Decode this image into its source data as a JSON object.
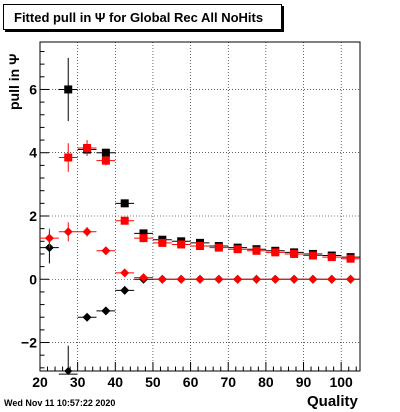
{
  "title": "Fitted pull in  Ψ  for Global Rec All NoHits",
  "ylabel": "pull in  Ψ",
  "xlabel": "Quality",
  "datestamp": "Wed Nov 11 10:57:22 2020",
  "chart_data": {
    "type": "scatter",
    "title": "Fitted pull in  Ψ  for Global Rec All NoHits",
    "xlabel": "Quality",
    "ylabel": "pull in  Ψ",
    "xlim": [
      20,
      105
    ],
    "ylim": [
      -2.9,
      7.5
    ],
    "grid": true,
    "x_ticks": [
      20,
      30,
      40,
      50,
      60,
      70,
      80,
      90,
      100
    ],
    "y_ticks": [
      -2,
      0,
      2,
      4,
      6
    ],
    "x_tick_labels": [
      "20",
      "30",
      "40",
      "50",
      "60",
      "70",
      "80",
      "90",
      "100"
    ],
    "y_tick_labels": [
      "−2",
      "0",
      "2",
      "4",
      "6"
    ],
    "series": [
      {
        "marker": "square",
        "color": "#000000",
        "x": [
          27.5,
          32.5,
          37.5,
          42.5,
          47.5,
          52.5,
          57.5,
          62.5,
          67.5,
          72.5,
          77.5,
          82.5,
          87.5,
          92.5,
          97.5,
          102.5
        ],
        "y": [
          6.0,
          4.1,
          4.0,
          2.4,
          1.45,
          1.25,
          1.2,
          1.15,
          1.05,
          1.0,
          0.95,
          0.9,
          0.85,
          0.8,
          0.75,
          0.7
        ],
        "err": [
          1.0,
          0.15,
          0.12,
          0.1,
          0.08,
          0.06,
          0.06,
          0.05,
          0.05,
          0.05,
          0.05,
          0.05,
          0.05,
          0.05,
          0.05,
          0.05
        ]
      },
      {
        "marker": "square",
        "color": "#ff0000",
        "x": [
          27.5,
          32.5,
          37.5,
          42.5,
          47.5,
          52.5,
          57.5,
          62.5,
          67.5,
          72.5,
          77.5,
          82.5,
          87.5,
          92.5,
          97.5,
          102.5
        ],
        "y": [
          3.85,
          4.15,
          3.75,
          1.85,
          1.3,
          1.15,
          1.1,
          1.05,
          1.0,
          0.95,
          0.9,
          0.85,
          0.8,
          0.75,
          0.7,
          0.65
        ],
        "err": [
          0.45,
          0.25,
          0.15,
          0.1,
          0.08,
          0.06,
          0.05,
          0.05,
          0.05,
          0.05,
          0.05,
          0.05,
          0.05,
          0.05,
          0.05,
          0.05
        ]
      },
      {
        "marker": "diamond",
        "color": "#000000",
        "x": [
          22.5,
          27.5,
          32.5,
          37.5,
          42.5,
          47.5,
          52.5,
          57.5,
          62.5,
          67.5,
          72.5,
          77.5,
          82.5,
          87.5,
          92.5,
          97.5,
          102.5
        ],
        "y": [
          1.0,
          -3.0,
          -1.2,
          -1.0,
          -0.35,
          0.0,
          0.0,
          0.0,
          0.0,
          0.0,
          0.0,
          0.0,
          0.0,
          0.0,
          0.0,
          0.0,
          0.0
        ],
        "err": [
          0.5,
          0.9,
          0.12,
          0.1,
          0.08,
          0.05,
          0.03,
          0.03,
          0.03,
          0.03,
          0.03,
          0.03,
          0.03,
          0.03,
          0.03,
          0.03,
          0.03
        ]
      },
      {
        "marker": "diamond",
        "color": "#ff0000",
        "x": [
          22.5,
          27.5,
          32.5,
          37.5,
          42.5,
          47.5,
          52.5,
          57.5,
          62.5,
          67.5,
          72.5,
          77.5,
          82.5,
          87.5,
          92.5,
          97.5,
          102.5
        ],
        "y": [
          1.3,
          1.5,
          1.5,
          0.9,
          0.2,
          0.05,
          0.0,
          0.0,
          0.0,
          0.0,
          0.0,
          0.0,
          0.0,
          0.0,
          0.0,
          0.0,
          0.0
        ],
        "err": [
          0.3,
          0.3,
          0.15,
          0.1,
          0.08,
          0.05,
          0.03,
          0.03,
          0.03,
          0.03,
          0.03,
          0.03,
          0.03,
          0.03,
          0.03,
          0.03,
          0.03
        ]
      }
    ]
  }
}
